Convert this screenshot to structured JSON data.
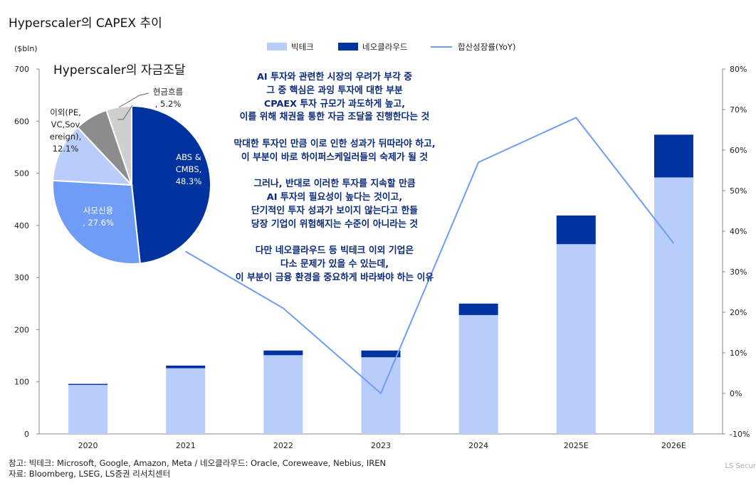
{
  "title": "Hyperscaler의 CAPEX 추이",
  "footnotes": [
    "참고: 빅테크: Microsoft, Google, Amazon, Meta / 네오클라우드: Oracle, Coreweave, Nebius, IREN",
    "자료: Bloomberg, LSEG, LS증권 리서치센터"
  ],
  "brand": "LS Secur",
  "annotation": [
    "AI 투자와 관련한 시장의 우려가 부각 중\n그 중 핵심은 과잉 투자에 대한 부분\nCPAEX 투자 규모가 과도하게 높고,\n이를 위해 채권을 통한 자금 조달을 진행한다는 것",
    "막대한 투자인 만큼 이로 인한 성과가 뒤따라야 하고,\n이 부분이 바로 하이퍼스케일러들의 숙제가 될 것",
    "그러나, 반대로 이러한 투자를 지속할 만큼\nAI 투자의 필요성이 높다는 것이고,\n단기적인 투자 성과가 보이지 않는다고 한들\n당장 기업이 위험해지는 수준이 아니라는 것",
    "다만 네오클라우드 등 빅테크 이외 기업은\n다소 문제가 있을 수 있는데,\n이 부분이 금융 환경을 중요하게 바라봐야 하는 이유"
  ],
  "chart_data": [
    {
      "type": "bar",
      "title": "Hyperscaler의 CAPEX 추이",
      "ylabel": "($bln)",
      "ylim": [
        0,
        700
      ],
      "yticks": [
        0,
        100,
        200,
        300,
        400,
        500,
        600,
        700
      ],
      "y2lim": [
        -10,
        80
      ],
      "y2ticks": [
        "-10%",
        "0%",
        "10%",
        "20%",
        "30%",
        "40%",
        "50%",
        "60%",
        "70%",
        "80%"
      ],
      "categories": [
        "2020",
        "2021",
        "2022",
        "2023",
        "2024",
        "2025E",
        "2026E"
      ],
      "series": [
        {
          "name": "빅테크",
          "kind": "bar",
          "color": "#b8cdfa",
          "values": [
            94,
            126,
            151,
            147,
            228,
            364,
            492
          ]
        },
        {
          "name": "네오클라우드",
          "kind": "bar",
          "color": "#00339f",
          "values": [
            2,
            5,
            9,
            13,
            22,
            55,
            82
          ]
        },
        {
          "name": "합산성장률(YoY)",
          "kind": "line",
          "axis": "right",
          "color": "#6f9cf5",
          "values": [
            null,
            35,
            21,
            0,
            57,
            68,
            37
          ]
        }
      ],
      "legend": "top"
    },
    {
      "type": "pie",
      "title": "Hyperscaler의 자금조달",
      "slices": [
        {
          "label": "ABS &\nCMBS,\n48.3%",
          "value": 48.3,
          "color": "#00339f"
        },
        {
          "label": "사모신용\n, 27.6%",
          "value": 27.6,
          "color": "#6f9cf5"
        },
        {
          "label": "이외(PE,\nVC,Sov\nereign),\n12.1%",
          "value": 12.1,
          "color": "#b8cdfa"
        },
        {
          "label": "",
          "value": 6.8,
          "color": "#8c8c8c"
        },
        {
          "label": "현금흐름\n, 5.2%",
          "value": 5.2,
          "color": "#cfcfcf"
        }
      ]
    }
  ]
}
